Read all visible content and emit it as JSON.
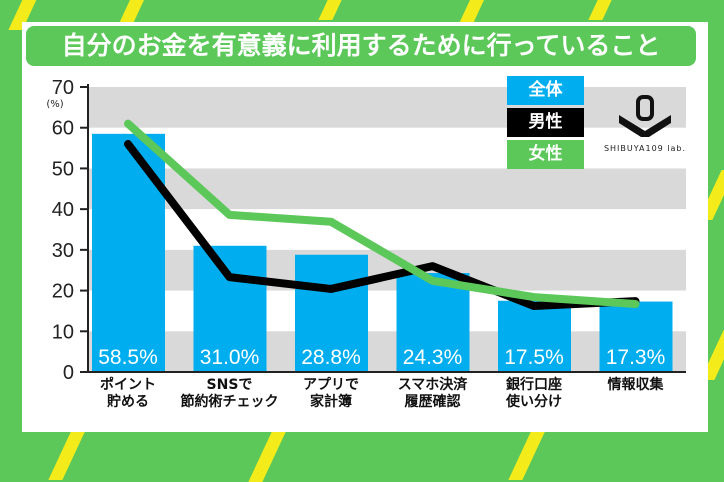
{
  "title": "自分のお金を有意義に利用するために行っていること",
  "logo": "SHIBUYA109 lab.",
  "chart_data": {
    "type": "bar",
    "title": "自分のお金を有意義に利用するために行っていること",
    "ylabel": "(%)",
    "ylim": [
      0,
      70
    ],
    "yticks": [
      "0",
      "10",
      "20",
      "30",
      "40",
      "50",
      "60",
      "70"
    ],
    "categories": [
      [
        "ポイント",
        "貯める"
      ],
      [
        "SNSで",
        "節約術チェック"
      ],
      [
        "アプリで",
        "家計簿"
      ],
      [
        "スマホ決済",
        "履歴確認"
      ],
      [
        "銀行口座",
        "使い分け"
      ],
      [
        "情報収集"
      ]
    ],
    "series": [
      {
        "name": "全体",
        "type": "bar",
        "color": "#00aeef",
        "values": [
          58.5,
          31.0,
          28.8,
          24.3,
          17.5,
          17.3
        ],
        "labels": [
          "58.5%",
          "31.0%",
          "28.8%",
          "24.3%",
          "17.5%",
          "17.3%"
        ]
      },
      {
        "name": "男性",
        "type": "line",
        "color": "#000000",
        "values": [
          56,
          23.3,
          20.4,
          26,
          16.2,
          17.4
        ]
      },
      {
        "name": "女性",
        "type": "line",
        "color": "#5cc85a",
        "values": [
          61,
          38.6,
          36.9,
          22.4,
          18.4,
          16.7
        ]
      }
    ],
    "grid": "alternating bands",
    "legend": "top-right"
  }
}
